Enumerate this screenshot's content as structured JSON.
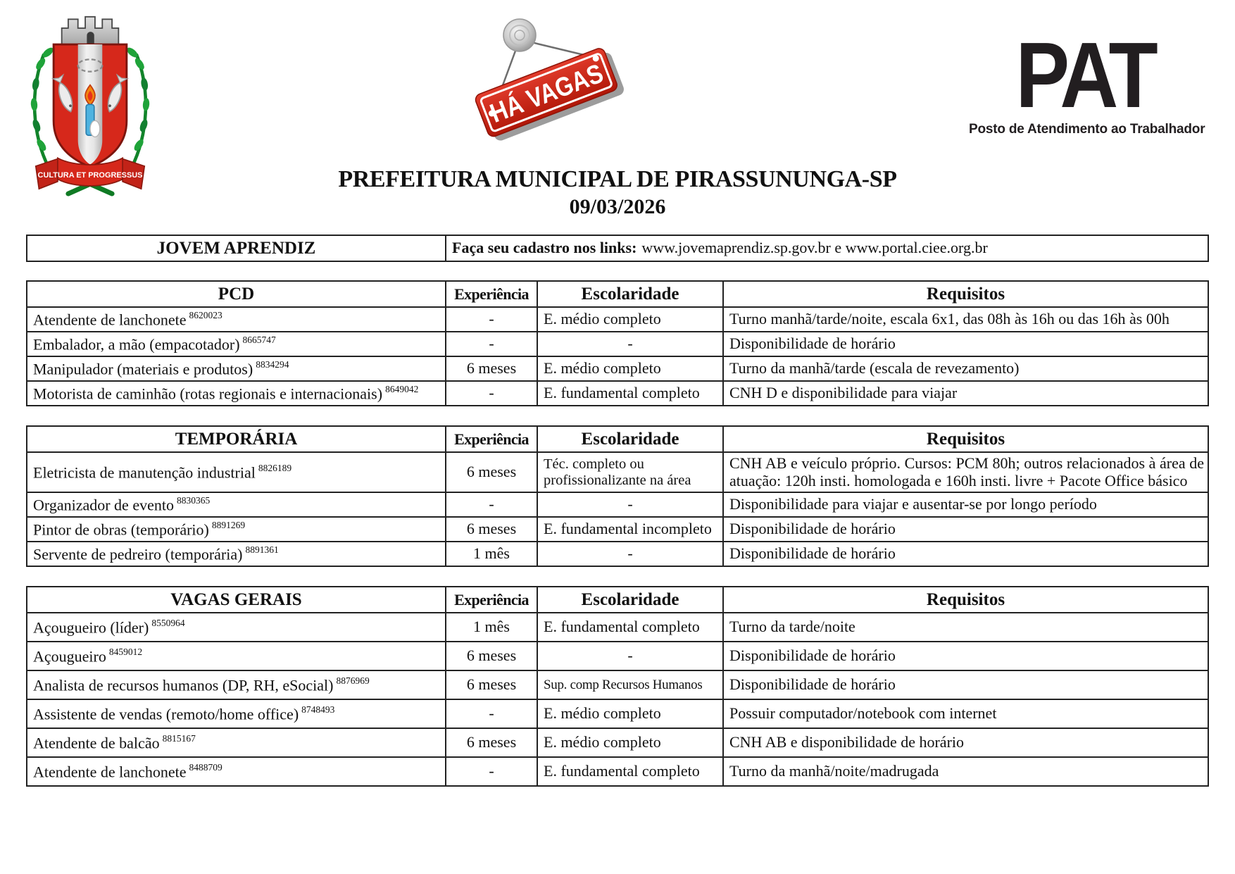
{
  "header": {
    "coat_of_arms": {
      "motto": "CULTURA ET PROGRESSUS"
    },
    "vacancy_sign": {
      "text": "HÁ VAGAS"
    },
    "pat_logo": {
      "acronym": "PAT",
      "subtitle": "Posto de Atendimento ao Trabalhador"
    }
  },
  "title": {
    "line1": "PREFEITURA MUNICIPAL DE PIRASSUNUNGA-SP",
    "date": "09/03/2026"
  },
  "jovem_aprendiz": {
    "label": "JOVEM APRENDIZ",
    "instruction_label": "Faça seu cadastro nos links:",
    "links_text": "www.jovemaprendiz.sp.gov.br e www.portal.ciee.org.br"
  },
  "columns": [
    "Experiência",
    "Escolaridade",
    "Requisitos"
  ],
  "tables": [
    {
      "category": "PCD",
      "rows": [
        {
          "job": "Atendente de lanchonete",
          "code": "8620023",
          "exp": "-",
          "edu": "E. médio completo",
          "req": "Turno manhã/tarde/noite, escala 6x1, das 08h às 16h ou das 16h às 00h"
        },
        {
          "job": "Embalador, a mão (empacotador)",
          "code": "8665747",
          "exp": "-",
          "edu": "-",
          "req": "Disponibilidade de horário"
        },
        {
          "job": "Manipulador (materiais e produtos)",
          "code": "8834294",
          "exp": "6 meses",
          "edu": "E. médio completo",
          "req": "Turno da manhã/tarde (escala de revezamento)"
        },
        {
          "job": "Motorista de caminhão (rotas regionais e internacionais)",
          "code": "8649042",
          "exp": "-",
          "edu": "E. fundamental completo",
          "req": "CNH D e disponibilidade para viajar"
        }
      ]
    },
    {
      "category": "TEMPORÁRIA",
      "rows": [
        {
          "job": "Eletricista de manutenção industrial",
          "code": "8826189",
          "exp": "6 meses",
          "edu": "Téc. completo ou profissionalizante na área",
          "req": "CNH AB e veículo próprio. Cursos: PCM 80h; outros relacionados à área de atuação: 120h insti. homologada e 160h insti. livre + Pacote Office básico"
        },
        {
          "job": "Organizador de evento",
          "code": "8830365",
          "exp": "-",
          "edu": "-",
          "req": "Disponibilidade para viajar e ausentar-se por longo período"
        },
        {
          "job": "Pintor de obras (temporário)",
          "code": "8891269",
          "exp": "6 meses",
          "edu": "E. fundamental incompleto",
          "req": "Disponibilidade de horário"
        },
        {
          "job": "Servente de pedreiro (temporária)",
          "code": "8891361",
          "exp": "1 mês",
          "edu": "-",
          "req": "Disponibilidade de horário"
        }
      ]
    },
    {
      "category": "VAGAS GERAIS",
      "rows": [
        {
          "job": "Açougueiro (líder)",
          "code": "8550964",
          "exp": "1 mês",
          "edu": "E. fundamental completo",
          "req": "Turno da tarde/noite"
        },
        {
          "job": "Açougueiro",
          "code": "8459012",
          "exp": "6 meses",
          "edu": "-",
          "req": "Disponibilidade de horário"
        },
        {
          "job": "Analista de recursos humanos (DP, RH, eSocial)",
          "code": "8876969",
          "exp": "6 meses",
          "edu": "Sup. comp Recursos Humanos",
          "req": "Disponibilidade de horário"
        },
        {
          "job": "Assistente de vendas (remoto/home office)",
          "code": "8748493",
          "exp": "-",
          "edu": "E. médio completo",
          "req": "Possuir computador/notebook com internet"
        },
        {
          "job": "Atendente de balcão",
          "code": "8815167",
          "exp": "6 meses",
          "edu": "E. médio completo",
          "req": "CNH AB e disponibilidade de horário"
        },
        {
          "job": "Atendente de lanchonete",
          "code": "8488709",
          "exp": "-",
          "edu": "E. fundamental completo",
          "req": "Turno da manhã/noite/madrugada"
        }
      ]
    }
  ],
  "colors": {
    "border": "#222222",
    "text": "#111111",
    "sign_red": "#c6261d",
    "shield_red": "#d6281b",
    "crown_gray": "#c9c9c9",
    "leaf_green": "#1fa339",
    "pat_black": "#221e20"
  }
}
